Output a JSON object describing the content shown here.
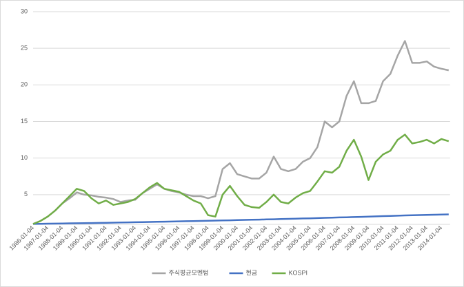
{
  "chart_data": {
    "type": "line",
    "categories": [
      "1986-01-04",
      null,
      "1987-01-04",
      null,
      "1988-01-04",
      null,
      "1989-01-04",
      null,
      "1990-01-04",
      null,
      "1991-01-04",
      null,
      "1992-01-04",
      null,
      "1993-01-04",
      null,
      "1994-01-04",
      null,
      "1995-01-04",
      null,
      "1996-01-04",
      null,
      "1997-01-04",
      null,
      "1998-01-04",
      null,
      "1999-01-04",
      null,
      "2000-01-04",
      null,
      "2001-01-04",
      null,
      "2002-01-04",
      null,
      "2003-01-04",
      null,
      "2004-01-04",
      null,
      "2005-01-04",
      null,
      "2006-01-04",
      null,
      "2007-01-04",
      null,
      "2008-01-04",
      null,
      "2009-01-04",
      null,
      "2010-01-04",
      null,
      "2011-01-04",
      null,
      "2012-01-04",
      null,
      "2013-01-04",
      null,
      "2014-01-04",
      null
    ],
    "series": [
      {
        "name": "주식평균모멘텀",
        "color": "#a5a5a5",
        "values": [
          1,
          1.4,
          2,
          2.8,
          3.8,
          4.5,
          5.3,
          5.0,
          4.9,
          4.7,
          4.6,
          4.4,
          4.0,
          4.2,
          4.3,
          5.2,
          5.8,
          6.4,
          5.8,
          5.5,
          5.3,
          5.0,
          4.8,
          4.8,
          4.5,
          4.8,
          8.5,
          9.3,
          7.8,
          7.5,
          7.2,
          7.2,
          8.0,
          10.2,
          8.5,
          8.2,
          8.5,
          9.5,
          10.0,
          11.5,
          15.0,
          14.2,
          15.0,
          18.5,
          20.5,
          17.5,
          17.5,
          17.8,
          20.5,
          21.5,
          24.0,
          26.0,
          23.0,
          23.0,
          23.2,
          22.5,
          22.2,
          22.0
        ]
      },
      {
        "name": "현금",
        "color": "#4472c4",
        "values": [
          1.0,
          1.01,
          1.03,
          1.04,
          1.06,
          1.08,
          1.09,
          1.11,
          1.12,
          1.14,
          1.16,
          1.18,
          1.19,
          1.21,
          1.23,
          1.25,
          1.27,
          1.29,
          1.31,
          1.33,
          1.35,
          1.37,
          1.39,
          1.41,
          1.44,
          1.46,
          1.48,
          1.5,
          1.52,
          1.55,
          1.57,
          1.59,
          1.62,
          1.64,
          1.67,
          1.69,
          1.72,
          1.75,
          1.77,
          1.8,
          1.83,
          1.86,
          1.89,
          1.91,
          1.94,
          1.97,
          2.0,
          2.03,
          2.07,
          2.1,
          2.13,
          2.16,
          2.19,
          2.21,
          2.24,
          2.26,
          2.28,
          2.3
        ]
      },
      {
        "name": "KOSPI",
        "color": "#70ad47",
        "values": [
          1,
          1.4,
          2,
          2.8,
          3.8,
          4.8,
          5.8,
          5.5,
          4.5,
          3.8,
          4.2,
          3.6,
          3.8,
          4.0,
          4.4,
          5.2,
          6.0,
          6.6,
          5.8,
          5.6,
          5.4,
          4.8,
          4.2,
          3.8,
          2.2,
          2.0,
          5.0,
          6.2,
          4.8,
          3.6,
          3.3,
          3.2,
          4.0,
          5.0,
          4.0,
          3.8,
          4.6,
          5.2,
          5.5,
          6.8,
          8.2,
          8.0,
          8.8,
          11.0,
          12.5,
          10.2,
          7.0,
          9.5,
          10.5,
          11.0,
          12.5,
          13.2,
          12.0,
          12.2,
          12.5,
          12.0,
          12.6,
          12.3
        ]
      }
    ],
    "ylim": [
      0,
      30
    ],
    "yticks": [
      5,
      10,
      15,
      20,
      25,
      30
    ],
    "grid": true,
    "legend": "bottom"
  }
}
